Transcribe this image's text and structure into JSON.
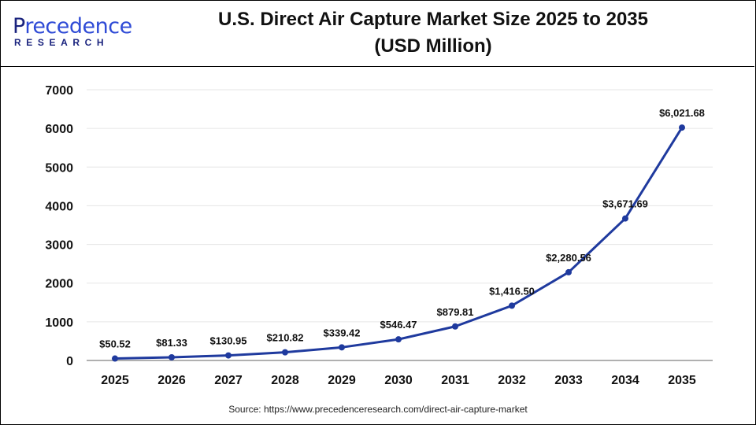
{
  "logo": {
    "main_initial": "P",
    "main_rest": "recedence",
    "sub": "RESEARCH"
  },
  "title": "U.S. Direct Air Capture Market Size 2025 to 2035",
  "subtitle": "(USD Million)",
  "source": "Source: https://www.precedenceresearch.com/direct-air-capture-market",
  "chart_data": {
    "type": "line",
    "title": "U.S. Direct Air Capture Market Size 2025 to 2035 (USD Million)",
    "categories": [
      "2025",
      "2026",
      "2027",
      "2028",
      "2029",
      "2030",
      "2031",
      "2032",
      "2033",
      "2034",
      "2035"
    ],
    "values": [
      50.52,
      81.33,
      130.95,
      210.82,
      339.42,
      546.47,
      879.81,
      1416.5,
      2280.56,
      3671.69,
      6021.68
    ],
    "data_labels": [
      "$50.52",
      "$81.33",
      "$130.95",
      "$210.82",
      "$339.42",
      "$546.47",
      "$879.81",
      "$1,416.50",
      "$2,280.56",
      "$3,671.69",
      "$6,021.68"
    ],
    "yticks": [
      0,
      1000,
      2000,
      3000,
      4000,
      5000,
      6000,
      7000
    ],
    "ylim": [
      0,
      7000
    ],
    "grid": true,
    "line_color": "#1f3a9e",
    "xlabel": "",
    "ylabel": ""
  }
}
